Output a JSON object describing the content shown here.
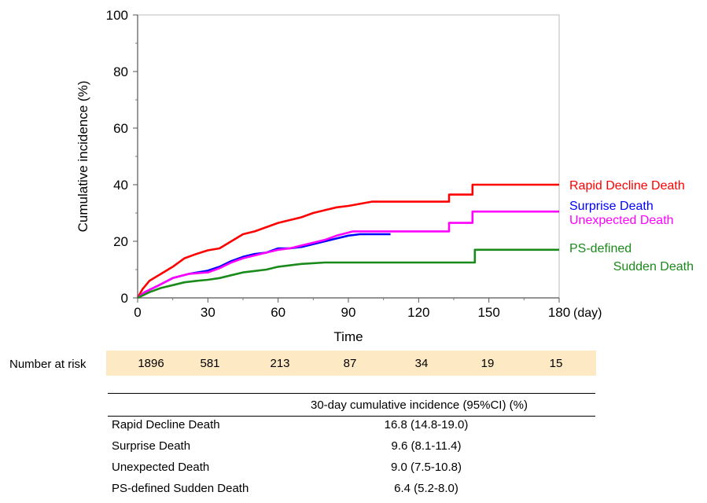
{
  "chart_data": {
    "type": "line",
    "xlabel": "Time",
    "ylabel": "Cumulative incidence (%)",
    "x_unit_label": "(day)",
    "xlim": [
      0,
      180
    ],
    "ylim": [
      0,
      100
    ],
    "x_ticks": [
      "0",
      "30",
      "60",
      "90",
      "120",
      "150",
      "180"
    ],
    "y_ticks": [
      "0",
      "20",
      "40",
      "60",
      "80",
      "100"
    ],
    "grid": false,
    "series": [
      {
        "name": "Rapid Decline Death",
        "color": "#ff0000",
        "points": [
          [
            0,
            0
          ],
          [
            2,
            3
          ],
          [
            5,
            6
          ],
          [
            10,
            8.5
          ],
          [
            15,
            11
          ],
          [
            20,
            14
          ],
          [
            25,
            15.5
          ],
          [
            30,
            16.8
          ],
          [
            35,
            17.5
          ],
          [
            40,
            20
          ],
          [
            45,
            22.5
          ],
          [
            50,
            23.5
          ],
          [
            55,
            25
          ],
          [
            60,
            26.5
          ],
          [
            65,
            27.5
          ],
          [
            70,
            28.5
          ],
          [
            75,
            30
          ],
          [
            80,
            31
          ],
          [
            85,
            32
          ],
          [
            90,
            32.5
          ],
          [
            100,
            34
          ],
          [
            110,
            34
          ],
          [
            120,
            34
          ],
          [
            133,
            34
          ],
          [
            133,
            36.5
          ],
          [
            143,
            36.5
          ],
          [
            143,
            40
          ],
          [
            180,
            40
          ]
        ]
      },
      {
        "name": "Surprise Death",
        "color": "#0000ff",
        "points": [
          [
            0,
            0
          ],
          [
            3,
            2
          ],
          [
            8,
            4
          ],
          [
            15,
            7
          ],
          [
            22,
            8.5
          ],
          [
            30,
            9.6
          ],
          [
            35,
            11
          ],
          [
            40,
            13
          ],
          [
            45,
            14.5
          ],
          [
            50,
            15.5
          ],
          [
            55,
            16
          ],
          [
            60,
            17.5
          ],
          [
            65,
            17.5
          ],
          [
            70,
            18
          ],
          [
            75,
            19
          ],
          [
            80,
            20
          ],
          [
            85,
            21
          ],
          [
            90,
            22
          ],
          [
            95,
            22.5
          ],
          [
            100,
            22.5
          ],
          [
            108,
            22.5
          ]
        ]
      },
      {
        "name": "Unexpected Death",
        "color": "#ff00ff",
        "points": [
          [
            0,
            0
          ],
          [
            3,
            2
          ],
          [
            8,
            4
          ],
          [
            15,
            7
          ],
          [
            22,
            8.5
          ],
          [
            30,
            9
          ],
          [
            35,
            10.5
          ],
          [
            40,
            12.5
          ],
          [
            45,
            14
          ],
          [
            50,
            15
          ],
          [
            55,
            16
          ],
          [
            60,
            17
          ],
          [
            65,
            17.5
          ],
          [
            70,
            18.5
          ],
          [
            75,
            19.5
          ],
          [
            80,
            20.5
          ],
          [
            85,
            22
          ],
          [
            92,
            23.5
          ],
          [
            110,
            23.5
          ],
          [
            120,
            23.5
          ],
          [
            133,
            23.5
          ],
          [
            133,
            26.5
          ],
          [
            143,
            26.5
          ],
          [
            143,
            30.5
          ],
          [
            180,
            30.5
          ]
        ]
      },
      {
        "name": "PS-defined Sudden Death",
        "legend_lines": [
          "PS-defined",
          "Sudden Death"
        ],
        "color": "#1a8a1a",
        "points": [
          [
            0,
            0
          ],
          [
            5,
            2
          ],
          [
            10,
            3.5
          ],
          [
            15,
            4.5
          ],
          [
            20,
            5.5
          ],
          [
            25,
            6
          ],
          [
            30,
            6.4
          ],
          [
            35,
            7
          ],
          [
            40,
            8
          ],
          [
            45,
            9
          ],
          [
            50,
            9.5
          ],
          [
            55,
            10
          ],
          [
            60,
            11
          ],
          [
            70,
            12
          ],
          [
            80,
            12.5
          ],
          [
            90,
            12.5
          ],
          [
            120,
            12.5
          ],
          [
            144,
            12.5
          ],
          [
            144,
            17
          ],
          [
            180,
            17
          ]
        ]
      }
    ]
  },
  "risk_table": {
    "label": "Number at risk",
    "values": [
      "1896",
      "581",
      "213",
      "87",
      "34",
      "19",
      "15"
    ]
  },
  "ci_table": {
    "header": "30-day cumulative incidence (95%CI) (%)",
    "rows": [
      {
        "name": "Rapid Decline Death",
        "value": "16.8 (14.8-19.0)"
      },
      {
        "name": "Surprise Death",
        "value": "9.6 (8.1-11.4)"
      },
      {
        "name": "Unexpected Death",
        "value": "9.0 (7.5-10.8)"
      },
      {
        "name": "PS-defined Sudden Death",
        "value": "6.4 (5.2-8.0)"
      }
    ]
  }
}
